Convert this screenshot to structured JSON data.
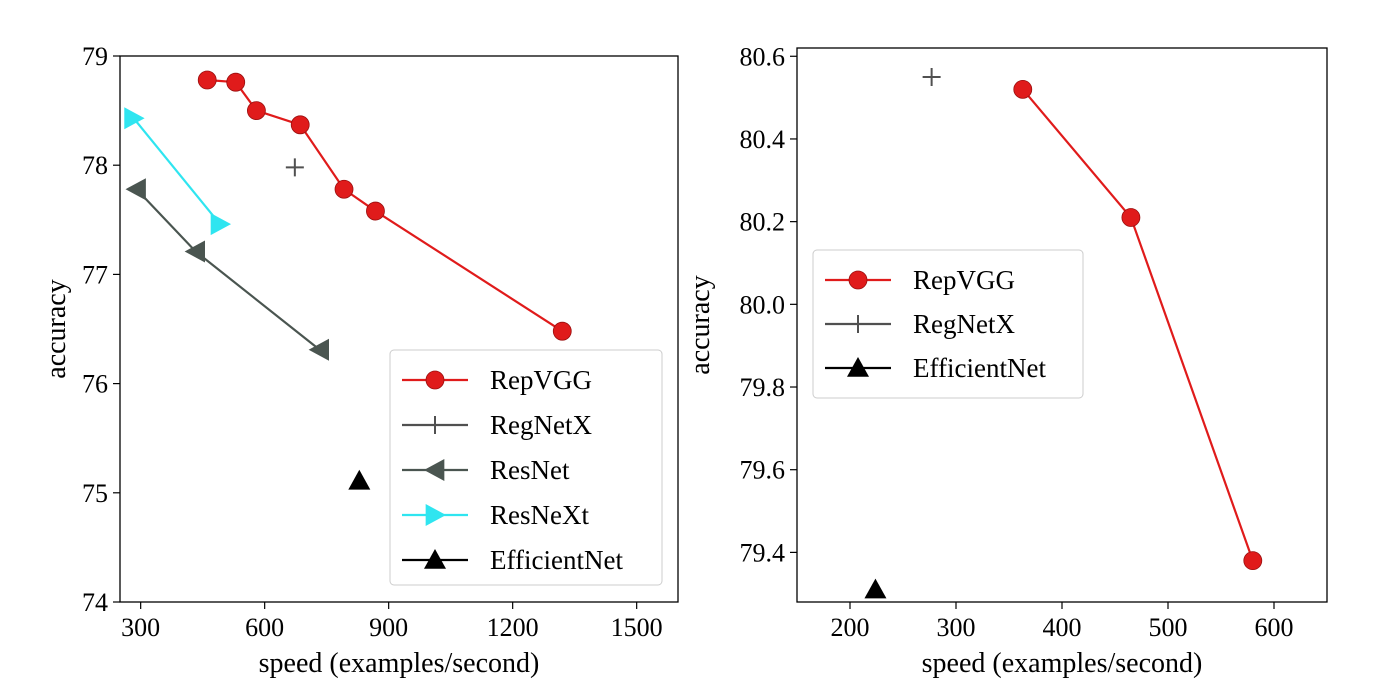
{
  "chart_data": [
    {
      "type": "line",
      "title": "",
      "xlabel": "speed (examples/second)",
      "ylabel": "accuracy",
      "xlim": [
        250,
        1600
      ],
      "ylim": [
        74,
        79
      ],
      "xticks": [
        300,
        600,
        900,
        1200,
        1500
      ],
      "yticks": [
        74,
        75,
        76,
        77,
        78,
        79
      ],
      "grid": false,
      "legend": "lower-right",
      "series": [
        {
          "name": "RepVGG",
          "color": "#e01b1b",
          "marker": "circle",
          "line": true,
          "x": [
            461,
            530,
            580,
            686,
            792,
            868,
            1320
          ],
          "y": [
            78.78,
            78.76,
            78.5,
            78.37,
            77.78,
            77.58,
            76.48
          ]
        },
        {
          "name": "RegNetX",
          "color": "#505050",
          "marker": "plus",
          "line": false,
          "x": [
            673
          ],
          "y": [
            77.98
          ]
        },
        {
          "name": "ResNet",
          "color": "#4a5550",
          "marker": "triangle-left",
          "line": true,
          "x": [
            290,
            433,
            733
          ],
          "y": [
            77.78,
            77.21,
            76.31
          ]
        },
        {
          "name": "ResNeXt",
          "color": "#2fe5f0",
          "marker": "triangle-right",
          "line": true,
          "x": [
            283,
            492
          ],
          "y": [
            78.43,
            77.46
          ]
        },
        {
          "name": "EfficientNet",
          "color": "#000000",
          "marker": "triangle-up",
          "line": false,
          "x": [
            829
          ],
          "y": [
            75.11
          ]
        }
      ]
    },
    {
      "type": "line",
      "title": "",
      "xlabel": "speed (examples/second)",
      "ylabel": "accuracy",
      "xlim": [
        150,
        650
      ],
      "ylim": [
        79.28,
        80.62
      ],
      "xticks": [
        200,
        300,
        400,
        500,
        600
      ],
      "yticks": [
        79.4,
        79.6,
        79.8,
        80.0,
        80.2,
        80.4,
        80.6
      ],
      "ytick_labels": [
        "79.4",
        "79.6",
        "79.8",
        "80.0",
        "80.2",
        "80.4",
        "80.6"
      ],
      "grid": false,
      "legend": "center-left",
      "series": [
        {
          "name": "RepVGG",
          "color": "#e01b1b",
          "marker": "circle",
          "line": true,
          "x": [
            363,
            465,
            580
          ],
          "y": [
            80.52,
            80.21,
            79.38
          ]
        },
        {
          "name": "RegNetX",
          "color": "#505050",
          "marker": "plus",
          "line": false,
          "x": [
            277
          ],
          "y": [
            80.55
          ]
        },
        {
          "name": "EfficientNet",
          "color": "#000000",
          "marker": "triangle-up",
          "line": false,
          "x": [
            224
          ],
          "y": [
            79.31
          ]
        }
      ]
    }
  ]
}
